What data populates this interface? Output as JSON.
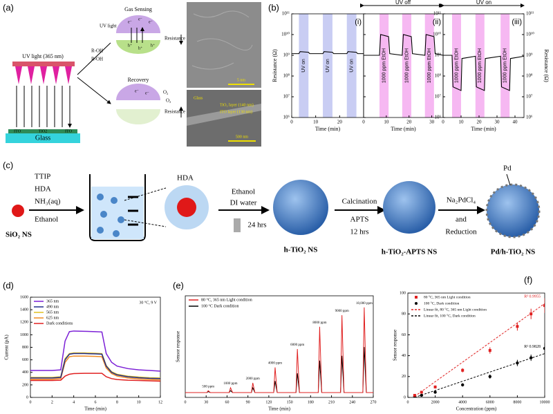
{
  "panel_a": {
    "label": "(a)",
    "uv_light": "UV light (365 nm)",
    "layers": [
      "ITO",
      "TiO2",
      "ITO"
    ],
    "substrate": "Glass",
    "gas_sensing": "Gas Sensing",
    "uv": "UV light",
    "r_oh": "R-OH",
    "resistance": "Resistance",
    "recovery": "Recovery",
    "oxygen": "O₂",
    "electron": "e⁻",
    "hole": "h⁺",
    "tem_scale": "5 nm",
    "sem_glass": "Glass",
    "sem_tio2": "TiO₂ layer (140 nm)",
    "sem_ito": "ITO layer (130 nm)",
    "sem_scale": "500 nm"
  },
  "panel_b": {
    "label": "(b)",
    "uv_off": "UV off",
    "uv_on": "UV on"
  },
  "panel_c": {
    "label": "(c)",
    "reagents": [
      "TTIP",
      "HDA",
      "NH₃(aq)",
      "Ethanol"
    ],
    "sio2": "SiO₂ NS",
    "hda": "HDA",
    "step1": [
      "Ethanol",
      "DI water",
      "24 hrs"
    ],
    "htio2": "h-TiO₂ NS",
    "step2": [
      "Calcination",
      "APTS",
      "12 hrs"
    ],
    "apts": "h-TiO₂-APTS NS",
    "step3": [
      "Na₂PdCl₄",
      "and",
      "Reduction"
    ],
    "pd": "Pd",
    "pdtio2": "Pd/h-TiO₂ NS"
  },
  "panel_labels": {
    "d": "(d)",
    "e": "(e)",
    "f": "(f)"
  },
  "chart_data": [
    {
      "type": "line",
      "sublabel": "(i)",
      "xlabel": "Time (min)",
      "ylabel": "Resistance (Ω)",
      "log_y": true,
      "xlim": [
        0,
        30
      ],
      "xticks": [
        0,
        10,
        20
      ],
      "ylim": [
        1000000,
        100000000000
      ],
      "yticks": [
        {
          "value": 1000000,
          "label": "10⁶"
        },
        {
          "value": 10000000,
          "label": "10⁷"
        },
        {
          "value": 100000000,
          "label": "10⁸"
        },
        {
          "value": 1000000000,
          "label": "10⁹"
        },
        {
          "value": 10000000000,
          "label": "10¹⁰"
        },
        {
          "value": 100000000000,
          "label": "10¹¹"
        }
      ],
      "bands": [
        {
          "start": 3,
          "end": 7,
          "label": "UV on",
          "color": "#c9cdf3"
        },
        {
          "start": 13,
          "end": 17,
          "label": "UV on",
          "color": "#c9cdf3"
        },
        {
          "start": 23,
          "end": 27,
          "label": "UV on",
          "color": "#c9cdf3"
        }
      ],
      "series": [
        {
          "color": "#000000",
          "x": [
            0,
            3,
            3.5,
            7,
            7.5,
            13,
            13.5,
            17,
            17.5,
            23,
            23.5,
            27,
            27.5,
            30
          ],
          "values": [
            1200000000,
            1200000000,
            1500000000,
            1400000000,
            1200000000,
            1200000000,
            1500000000,
            1400000000,
            1200000000,
            1200000000,
            1500000000,
            1400000000,
            1200000000,
            1200000000
          ]
        }
      ]
    },
    {
      "type": "line",
      "sublabel": "(ii)",
      "xlabel": "Time (min)",
      "log_y": true,
      "xlim": [
        0,
        35
      ],
      "xticks": [
        0,
        10,
        20,
        30
      ],
      "ylim": [
        1000000,
        100000000000
      ],
      "yticks": [
        {
          "value": 1000000,
          "label": "10⁶"
        },
        {
          "value": 10000000,
          "label": "10⁷"
        },
        {
          "value": 100000000,
          "label": "10⁸"
        },
        {
          "value": 1000000000,
          "label": "10⁹"
        },
        {
          "value": 10000000000,
          "label": "10¹⁰"
        },
        {
          "value": 100000000000,
          "label": "10¹¹"
        }
      ],
      "bands": [
        {
          "start": 7,
          "end": 11,
          "label": "1000 ppm EtOH",
          "color": "#f6b8f2"
        },
        {
          "start": 17,
          "end": 21,
          "label": "1000 ppm EtOH",
          "color": "#f6b8f2"
        },
        {
          "start": 27,
          "end": 31,
          "label": "1000 ppm EtOH",
          "color": "#f6b8f2"
        }
      ],
      "series": [
        {
          "color": "#000000",
          "x": [
            0,
            7,
            7.5,
            11,
            11.5,
            17,
            17.5,
            21,
            21.5,
            27,
            27.5,
            31,
            31.5,
            35
          ],
          "values": [
            1000000000,
            1000000000,
            10000000000,
            8000000000,
            1200000000,
            1000000000,
            10000000000,
            8000000000,
            1200000000,
            1000000000,
            10000000000,
            8000000000,
            1200000000,
            1000000000
          ]
        }
      ]
    },
    {
      "type": "line",
      "sublabel": "(iii)",
      "xlabel": "Time (min)",
      "y2label": "Resistance (Ω)",
      "log_y": true,
      "xlim": [
        0,
        45
      ],
      "xticks": [
        0,
        10,
        20,
        30,
        40
      ],
      "ylim": [
        1000000,
        100000000000
      ],
      "yticks": [
        {
          "value": 1000000,
          "label": "10⁶"
        },
        {
          "value": 10000000,
          "label": "10⁷"
        },
        {
          "value": 100000000,
          "label": "10⁸"
        },
        {
          "value": 1000000000,
          "label": "10⁹"
        },
        {
          "value": 10000000000,
          "label": "10¹⁰"
        },
        {
          "value": 100000000000,
          "label": "10¹¹"
        }
      ],
      "y2lim": [
        1000000,
        100000000000
      ],
      "y2ticks": [
        {
          "value": 1000000,
          "label": "10⁶"
        },
        {
          "value": 10000000,
          "label": "10⁷"
        },
        {
          "value": 100000000,
          "label": "10⁸"
        },
        {
          "value": 1000000000,
          "label": "10⁹"
        },
        {
          "value": 10000000000,
          "label": "10¹⁰"
        },
        {
          "value": 100000000000,
          "label": "10¹¹"
        }
      ],
      "bands": [
        {
          "start": 5,
          "end": 10,
          "label": "1000 ppm EtOH",
          "color": "#f6b8f2"
        },
        {
          "start": 18,
          "end": 23,
          "label": "1000 ppm EtOH",
          "color": "#f6b8f2"
        },
        {
          "start": 32,
          "end": 37,
          "label": "1000 ppm EtOH",
          "color": "#f6b8f2"
        }
      ],
      "series": [
        {
          "color": "#000000",
          "x": [
            0,
            5,
            5.5,
            10,
            10.5,
            18,
            18.5,
            23,
            23.5,
            32,
            32.5,
            37,
            37.5,
            45
          ],
          "values": [
            1000000000,
            1000000000,
            30000000,
            20000000,
            700000000,
            900000000,
            30000000,
            20000000,
            700000000,
            900000000,
            30000000,
            20000000,
            700000000,
            900000000
          ]
        }
      ]
    },
    {
      "type": "line",
      "xlabel": "Time (min)",
      "ylabel": "Current (pA)",
      "note": "30 °C, 9 V",
      "xlim": [
        0,
        12
      ],
      "xticks": [
        0,
        2,
        4,
        6,
        8,
        10,
        12
      ],
      "ylim": [
        0,
        1600
      ],
      "yticks": [
        0,
        200,
        400,
        600,
        800,
        1000,
        1200,
        1400,
        1600
      ],
      "series": [
        {
          "name": "365 nm",
          "color": "#7b1fd6",
          "x": [
            0,
            1,
            2,
            2.8,
            3.2,
            3.6,
            4,
            5,
            6,
            6.6,
            7,
            7.5,
            8,
            9,
            10,
            11,
            12
          ],
          "values": [
            430,
            430,
            430,
            440,
            900,
            1050,
            1060,
            1055,
            1050,
            1045,
            700,
            560,
            500,
            460,
            440,
            430,
            420
          ]
        },
        {
          "name": "490 nm",
          "color": "#1f2a8a",
          "x": [
            0,
            1,
            2,
            2.8,
            3.2,
            3.6,
            4,
            5,
            6,
            6.6,
            7,
            7.5,
            8,
            9,
            10,
            11,
            12
          ],
          "values": [
            310,
            310,
            310,
            320,
            600,
            690,
            700,
            700,
            695,
            690,
            500,
            400,
            360,
            330,
            315,
            305,
            300
          ]
        },
        {
          "name": "565 nm",
          "color": "#e0c020",
          "x": [
            0,
            1,
            2,
            2.8,
            3.2,
            3.6,
            4,
            5,
            6,
            6.6,
            7,
            7.5,
            8,
            9,
            10,
            11,
            12
          ],
          "values": [
            320,
            320,
            320,
            330,
            620,
            700,
            710,
            710,
            705,
            700,
            510,
            410,
            370,
            340,
            325,
            315,
            310
          ]
        },
        {
          "name": "625 nm",
          "color": "#f08a20",
          "x": [
            0,
            1,
            2,
            2.8,
            3.2,
            3.6,
            4,
            5,
            6,
            6.6,
            7,
            7.5,
            8,
            9,
            10,
            11,
            12
          ],
          "values": [
            290,
            290,
            290,
            300,
            560,
            650,
            660,
            660,
            655,
            650,
            470,
            380,
            340,
            310,
            295,
            285,
            280
          ]
        },
        {
          "name": "Dark conditions",
          "color": "#e02020",
          "x": [
            0,
            1,
            2,
            2.8,
            3.2,
            3.6,
            4,
            5,
            6,
            6.6,
            7,
            7.5,
            8,
            9,
            10,
            11,
            12
          ],
          "values": [
            270,
            270,
            270,
            275,
            340,
            370,
            380,
            385,
            385,
            385,
            330,
            300,
            285,
            275,
            270,
            265,
            260
          ]
        }
      ]
    },
    {
      "type": "line",
      "xlabel": "Time (min)",
      "ylabel": "Sensor response",
      "xlim": [
        0,
        270
      ],
      "xticks": [
        0,
        30,
        60,
        90,
        120,
        150,
        180,
        210,
        240,
        270
      ],
      "ylim": [
        -5,
        100
      ],
      "series": [
        {
          "name": "80 °C, 365 nm Light condition",
          "color": "#e02020",
          "x": [
            0,
            31,
            33,
            36,
            63,
            65,
            68,
            95,
            97,
            100,
            127,
            129,
            132,
            159,
            161,
            164,
            191,
            193,
            196,
            223,
            225,
            228,
            255,
            257,
            260,
            270
          ],
          "values": [
            0,
            0,
            2,
            0,
            0,
            5,
            0,
            0,
            10,
            0,
            0,
            26,
            0,
            0,
            45,
            0,
            0,
            68,
            0,
            0,
            80,
            0,
            0,
            88,
            0,
            0
          ]
        },
        {
          "name": "100 °C Dark condition",
          "color": "#000000",
          "x": [
            0,
            31,
            33,
            36,
            63,
            65,
            68,
            95,
            97,
            100,
            127,
            129,
            132,
            159,
            161,
            164,
            191,
            193,
            196,
            223,
            225,
            228,
            255,
            257,
            260,
            270
          ],
          "values": [
            0,
            0,
            1,
            0,
            0,
            2,
            0,
            0,
            5,
            0,
            0,
            12,
            0,
            0,
            20,
            0,
            0,
            33,
            0,
            0,
            38,
            0,
            0,
            47,
            0,
            0
          ]
        }
      ],
      "annotations": [
        {
          "x": 33,
          "label": "500 ppm"
        },
        {
          "x": 65,
          "label": "1000 ppm"
        },
        {
          "x": 97,
          "label": "2000 ppm"
        },
        {
          "x": 129,
          "label": "4000 ppm"
        },
        {
          "x": 161,
          "label": "6000 ppm"
        },
        {
          "x": 193,
          "label": "8000 ppm"
        },
        {
          "x": 225,
          "label": "9000 ppm"
        },
        {
          "x": 257,
          "label": "10,000 ppm"
        }
      ]
    },
    {
      "type": "scatter",
      "xlabel": "Concentration (ppm)",
      "ylabel": "Sensor response",
      "xlim": [
        0,
        10000
      ],
      "xticks": [
        0,
        2000,
        4000,
        6000,
        8000,
        10000
      ],
      "ylim": [
        0,
        100
      ],
      "yticks": [
        0,
        20,
        40,
        60,
        80,
        100
      ],
      "series": [
        {
          "name": "80 °C, 365 nm Light condition",
          "color": "#e02020",
          "marker": "square",
          "x": [
            500,
            1000,
            2000,
            4000,
            6000,
            8000,
            9000,
            10000
          ],
          "values": [
            2,
            5,
            10,
            26,
            45,
            68,
            80,
            88
          ],
          "errors": [
            0.5,
            1,
            1.5,
            2,
            3,
            4,
            5,
            7
          ]
        },
        {
          "name": "100 °C, Dark condition",
          "color": "#000000",
          "marker": "circle",
          "x": [
            500,
            1000,
            2000,
            4000,
            6000,
            8000,
            9000,
            10000
          ],
          "values": [
            1,
            2,
            5,
            12,
            20,
            33,
            38,
            47
          ],
          "errors": [
            0.3,
            0.5,
            1,
            1.5,
            2,
            3,
            3,
            5
          ]
        },
        {
          "name": "Linear fit, 80 °C, 365 nm Light condition",
          "color": "#e02020",
          "dash": true,
          "x": [
            500,
            10000
          ],
          "values": [
            1,
            90
          ],
          "annotation": "R² 0.9955"
        },
        {
          "name": "Linear fit, 100 °C, Dark condition",
          "color": "#000000",
          "dash": true,
          "x": [
            500,
            10000
          ],
          "values": [
            0,
            42
          ],
          "annotation": "R² 0.9828"
        }
      ]
    }
  ]
}
